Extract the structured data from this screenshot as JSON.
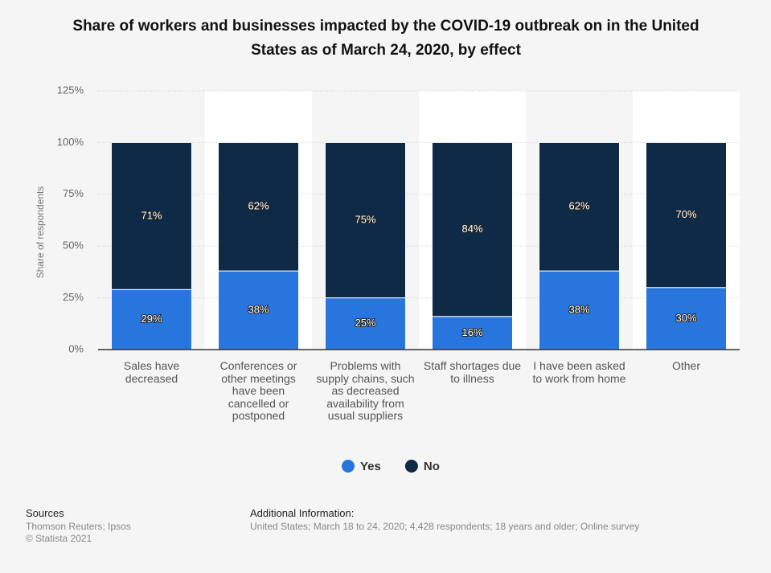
{
  "chart_data": {
    "type": "stacked_bar",
    "title": "Share of workers and businesses impacted by the COVID-19 outbreak on in the United States as of March 24, 2020, by effect",
    "y_label": "Share of respondents",
    "categories": [
      "Sales have decreased",
      "Conferences or other meetings have been cancelled or postponed",
      "Problems with supply chains, such as decreased availability from usual suppliers",
      "Staff shortages due to illness",
      "I have been asked to work from home",
      "Other"
    ],
    "series": [
      {
        "name": "Yes",
        "color": "#2876dd",
        "values": [
          29,
          38,
          25,
          16,
          38,
          30
        ],
        "value_labels": [
          "29%",
          "38%",
          "25%",
          "16%",
          "38%",
          "30%"
        ]
      },
      {
        "name": "No",
        "color": "#0f2a47",
        "values": [
          71,
          62,
          75,
          84,
          62,
          70
        ],
        "value_labels": [
          "71%",
          "62%",
          "75%",
          "84%",
          "62%",
          "70%"
        ]
      }
    ],
    "ylim": [
      0,
      125
    ],
    "yticks": [
      {
        "value": 0,
        "label": "0%"
      },
      {
        "value": 25,
        "label": "25%"
      },
      {
        "value": 50,
        "label": "50%"
      },
      {
        "value": 75,
        "label": "75%"
      },
      {
        "value": 100,
        "label": "100%"
      },
      {
        "value": 125,
        "label": "125%"
      }
    ],
    "grid": true,
    "legend": "bottom"
  },
  "footer": {
    "sources_title": "Sources",
    "sources": "Thomson Reuters; Ipsos",
    "copyright": "© Statista 2021",
    "info_title": "Additional Information:",
    "info": "United States; March 18 to 24, 2020; 4,428 respondents; 18 years and older; Online survey"
  }
}
